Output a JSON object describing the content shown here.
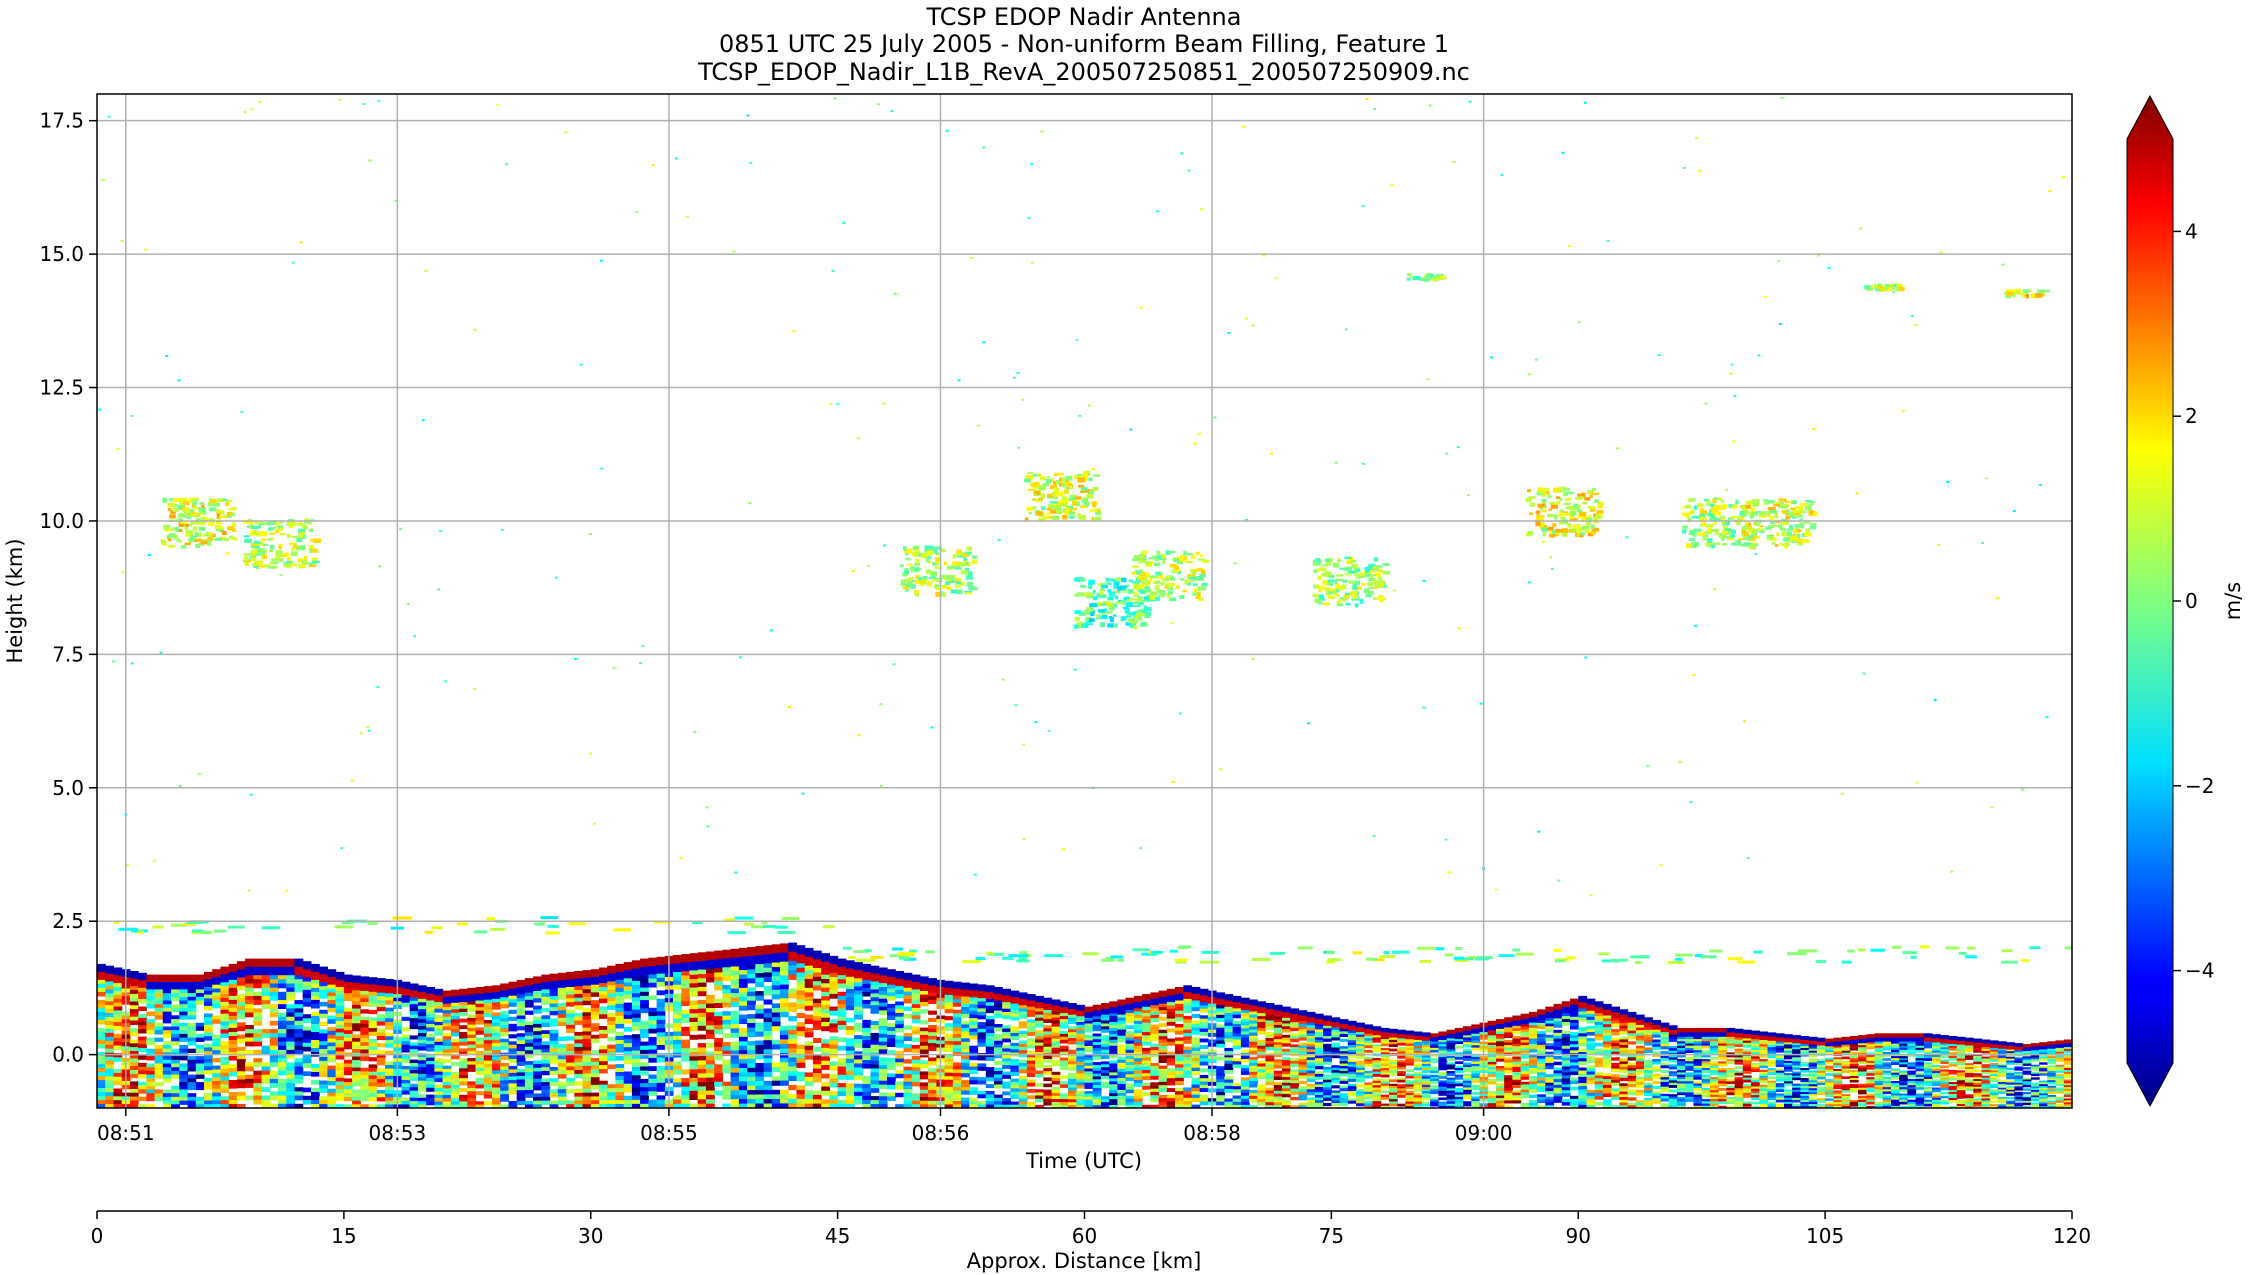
{
  "chart_data": [
    {
      "type": "heatmap",
      "title": [
        "TCSP EDOP Nadir Antenna",
        "0851 UTC 25 July 2005 - Non-uniform Beam Filling, Feature 1",
        "TCSP_EDOP_Nadir_L1B_RevA_200507250851_200507250909.nc"
      ],
      "xlabel": "Time (UTC)",
      "ylabel": "Height (km)",
      "xticks": [
        "08:51",
        "08:53",
        "08:55",
        "08:56",
        "08:58",
        "09:00"
      ],
      "yticks": [
        "0.0",
        "2.5",
        "5.0",
        "7.5",
        "10.0",
        "12.5",
        "15.0",
        "17.5"
      ],
      "ytick_values": [
        0,
        2.5,
        5,
        7.5,
        10,
        12.5,
        15,
        17.5
      ],
      "ylim": [
        -1.0,
        18.0
      ],
      "grid": true,
      "secondary_xaxis": {
        "label": "Approx. Distance [km]",
        "ticks": [
          "0",
          "15",
          "30",
          "45",
          "60",
          "75",
          "90",
          "105",
          "120"
        ],
        "tick_values": [
          0,
          15,
          30,
          45,
          60,
          75,
          90,
          105,
          120
        ],
        "xlim": [
          0,
          120
        ]
      },
      "colorbar": {
        "label": "m/s",
        "ticks": [
          "4",
          "2",
          "0",
          "−2",
          "−4"
        ],
        "tick_values": [
          4,
          2,
          0,
          -2,
          -4
        ],
        "range": [
          -5,
          5
        ],
        "extend": "both",
        "colormap": "jet"
      },
      "surface_top_km": [
        [
          0,
          1.7
        ],
        [
          3,
          1.5
        ],
        [
          6,
          1.5
        ],
        [
          9,
          1.8
        ],
        [
          12,
          1.8
        ],
        [
          15,
          1.5
        ],
        [
          18,
          1.4
        ],
        [
          21,
          1.2
        ],
        [
          24,
          1.3
        ],
        [
          27,
          1.5
        ],
        [
          30,
          1.6
        ],
        [
          33,
          1.8
        ],
        [
          36,
          1.9
        ],
        [
          39,
          2.0
        ],
        [
          42,
          2.1
        ],
        [
          45,
          1.8
        ],
        [
          48,
          1.6
        ],
        [
          51,
          1.4
        ],
        [
          54,
          1.3
        ],
        [
          57,
          1.1
        ],
        [
          60,
          0.9
        ],
        [
          63,
          1.1
        ],
        [
          66,
          1.3
        ],
        [
          69,
          1.1
        ],
        [
          72,
          0.9
        ],
        [
          75,
          0.7
        ],
        [
          78,
          0.5
        ],
        [
          81,
          0.4
        ],
        [
          84,
          0.6
        ],
        [
          87,
          0.8
        ],
        [
          90,
          1.1
        ],
        [
          93,
          0.8
        ],
        [
          96,
          0.5
        ],
        [
          99,
          0.5
        ],
        [
          102,
          0.4
        ],
        [
          105,
          0.3
        ],
        [
          108,
          0.4
        ],
        [
          111,
          0.4
        ],
        [
          114,
          0.3
        ],
        [
          117,
          0.2
        ],
        [
          120,
          0.3
        ]
      ],
      "cloud_features": [
        {
          "x_km": 6.0,
          "height_km": 10.0,
          "velocity_ms": 1.0
        },
        {
          "x_km": 11.0,
          "height_km": 9.6,
          "velocity_ms": 0.5
        },
        {
          "x_km": 51.0,
          "height_km": 9.1,
          "velocity_ms": 0.5
        },
        {
          "x_km": 58.5,
          "height_km": 10.5,
          "velocity_ms": 0.8
        },
        {
          "x_km": 61.5,
          "height_km": 8.5,
          "velocity_ms": -0.5
        },
        {
          "x_km": 65.0,
          "height_km": 9.0,
          "velocity_ms": 0.5
        },
        {
          "x_km": 76.0,
          "height_km": 8.9,
          "velocity_ms": 0.3
        },
        {
          "x_km": 89.0,
          "height_km": 10.2,
          "velocity_ms": 1.0
        },
        {
          "x_km": 98.5,
          "height_km": 10.0,
          "velocity_ms": 0.5
        },
        {
          "x_km": 102.0,
          "height_km": 10.0,
          "velocity_ms": 0.8
        },
        {
          "x_km": 80.5,
          "height_km": 14.6,
          "velocity_ms": 0.5
        },
        {
          "x_km": 108.5,
          "height_km": 14.4,
          "velocity_ms": 0.5
        },
        {
          "x_km": 117.0,
          "height_km": 14.3,
          "velocity_ms": 1.2
        }
      ]
    }
  ]
}
